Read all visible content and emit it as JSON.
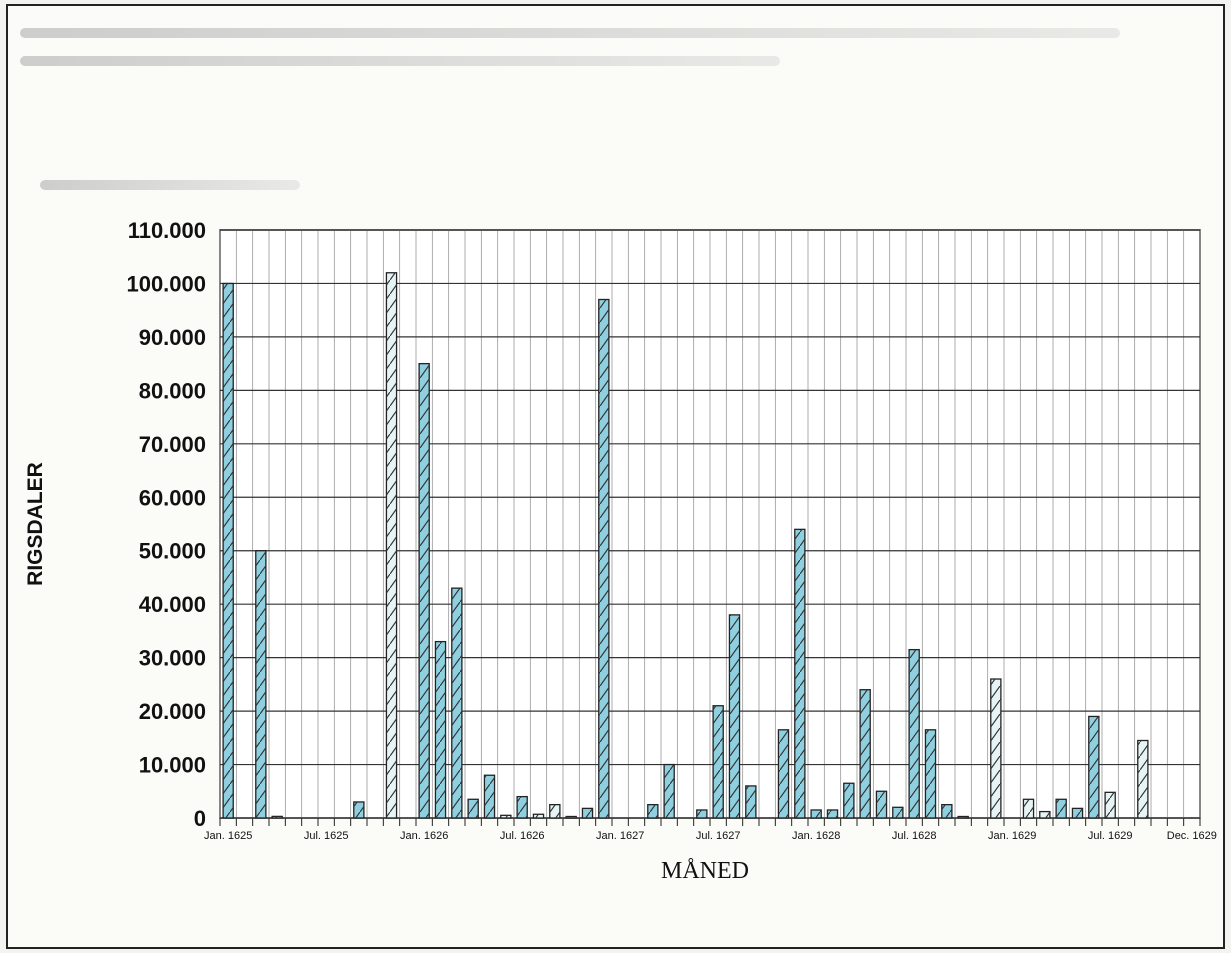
{
  "chart_data": {
    "type": "bar",
    "title": "",
    "xlabel": "MÅNED",
    "ylabel": "RIGSDALER",
    "ylim": [
      0,
      110000
    ],
    "y_ticks": [
      0,
      10000,
      20000,
      30000,
      40000,
      50000,
      60000,
      70000,
      80000,
      90000,
      100000,
      110000
    ],
    "y_tick_labels": [
      "0",
      "10.000",
      "20.000",
      "30.000",
      "40.000",
      "50.000",
      "60.000",
      "70.000",
      "80.000",
      "90.000",
      "100.000",
      "110.000"
    ],
    "x_tick_labels": [
      {
        "month_index": 0,
        "label": "Jan. 1625"
      },
      {
        "month_index": 6,
        "label": "Jul. 1625"
      },
      {
        "month_index": 12,
        "label": "Jan. 1626"
      },
      {
        "month_index": 18,
        "label": "Jul. 1626"
      },
      {
        "month_index": 24,
        "label": "Jan. 1627"
      },
      {
        "month_index": 30,
        "label": "Jul. 1627"
      },
      {
        "month_index": 36,
        "label": "Jan. 1628"
      },
      {
        "month_index": 42,
        "label": "Jul. 1628"
      },
      {
        "month_index": 48,
        "label": "Jan. 1629"
      },
      {
        "month_index": 54,
        "label": "Jul. 1629"
      },
      {
        "month_index": 59,
        "label": "Dec. 1629"
      }
    ],
    "grid": true,
    "bar_fill": "#8fd0e0",
    "bar_fill_light": "#e6f4f6",
    "bars": [
      {
        "month_index": 0,
        "value": 100000,
        "shade": "dark"
      },
      {
        "month_index": 2,
        "value": 50000,
        "shade": "dark"
      },
      {
        "month_index": 3,
        "value": 300,
        "shade": "light"
      },
      {
        "month_index": 8,
        "value": 3000,
        "shade": "dark"
      },
      {
        "month_index": 10,
        "value": 102000,
        "shade": "light"
      },
      {
        "month_index": 12,
        "value": 85000,
        "shade": "dark"
      },
      {
        "month_index": 13,
        "value": 33000,
        "shade": "dark"
      },
      {
        "month_index": 14,
        "value": 43000,
        "shade": "dark"
      },
      {
        "month_index": 15,
        "value": 3500,
        "shade": "dark"
      },
      {
        "month_index": 16,
        "value": 8000,
        "shade": "dark"
      },
      {
        "month_index": 17,
        "value": 500,
        "shade": "light"
      },
      {
        "month_index": 18,
        "value": 4000,
        "shade": "dark"
      },
      {
        "month_index": 19,
        "value": 700,
        "shade": "light"
      },
      {
        "month_index": 20,
        "value": 2500,
        "shade": "light"
      },
      {
        "month_index": 21,
        "value": 200,
        "shade": "light"
      },
      {
        "month_index": 22,
        "value": 1800,
        "shade": "dark"
      },
      {
        "month_index": 23,
        "value": 97000,
        "shade": "dark"
      },
      {
        "month_index": 26,
        "value": 2500,
        "shade": "dark"
      },
      {
        "month_index": 27,
        "value": 10000,
        "shade": "dark"
      },
      {
        "month_index": 29,
        "value": 1500,
        "shade": "dark"
      },
      {
        "month_index": 30,
        "value": 21000,
        "shade": "dark"
      },
      {
        "month_index": 31,
        "value": 38000,
        "shade": "dark"
      },
      {
        "month_index": 32,
        "value": 6000,
        "shade": "dark"
      },
      {
        "month_index": 34,
        "value": 16500,
        "shade": "dark"
      },
      {
        "month_index": 35,
        "value": 54000,
        "shade": "dark"
      },
      {
        "month_index": 36,
        "value": 1500,
        "shade": "dark"
      },
      {
        "month_index": 37,
        "value": 1500,
        "shade": "dark"
      },
      {
        "month_index": 38,
        "value": 6500,
        "shade": "dark"
      },
      {
        "month_index": 39,
        "value": 24000,
        "shade": "dark"
      },
      {
        "month_index": 40,
        "value": 5000,
        "shade": "dark"
      },
      {
        "month_index": 41,
        "value": 2000,
        "shade": "dark"
      },
      {
        "month_index": 42,
        "value": 31500,
        "shade": "dark"
      },
      {
        "month_index": 43,
        "value": 16500,
        "shade": "dark"
      },
      {
        "month_index": 44,
        "value": 2500,
        "shade": "dark"
      },
      {
        "month_index": 45,
        "value": 200,
        "shade": "light"
      },
      {
        "month_index": 47,
        "value": 26000,
        "shade": "light"
      },
      {
        "month_index": 49,
        "value": 3500,
        "shade": "light"
      },
      {
        "month_index": 50,
        "value": 1200,
        "shade": "light"
      },
      {
        "month_index": 51,
        "value": 3500,
        "shade": "dark"
      },
      {
        "month_index": 52,
        "value": 1800,
        "shade": "dark"
      },
      {
        "month_index": 53,
        "value": 19000,
        "shade": "dark"
      },
      {
        "month_index": 54,
        "value": 4800,
        "shade": "light"
      },
      {
        "month_index": 56,
        "value": 14500,
        "shade": "light"
      }
    ]
  }
}
